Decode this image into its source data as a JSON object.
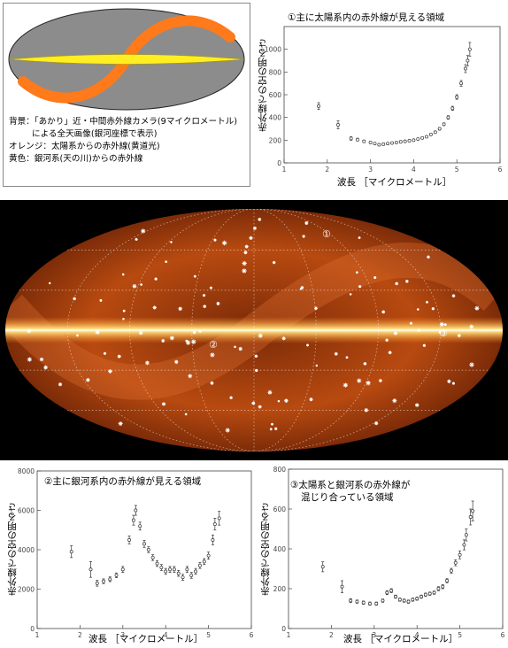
{
  "legend": {
    "line1": "背景：「あかり」近・中間赤外線カメラ(9マイクロメートル)",
    "line2": "による全天画像(銀河座標で表示)",
    "line3": "オレンジ：太陽系からの赤外線(黄道光)",
    "line4": "黄色：銀河系(天の川)からの赤外線",
    "colors": {
      "background": "#8c8c8c",
      "orange": "#ff7a1a",
      "yellow": "#ffee22"
    }
  },
  "map": {
    "label_1": "①",
    "label_2": "②",
    "label_3": "③",
    "colors": {
      "sky": "#000000",
      "glow": "#b84a10",
      "band": "#ffe080"
    }
  },
  "axes_common": {
    "xlabel": "波長 ［マイクロメートル］",
    "ylabel": "赤外線での空の明るさ"
  },
  "chart_data": [
    {
      "type": "scatter",
      "title": "①主に太陽系内の赤外線が見える領域",
      "xlim": [
        1,
        6
      ],
      "ylim": [
        0,
        1200
      ],
      "xticks": [
        "1",
        "2",
        "3",
        "4",
        "5",
        "6"
      ],
      "yticks": [
        "0",
        "200",
        "400",
        "600",
        "800",
        "1000"
      ],
      "points": [
        [
          1.8,
          500,
          30
        ],
        [
          2.25,
          335,
          35
        ],
        [
          2.55,
          215,
          15
        ],
        [
          2.7,
          205,
          12
        ],
        [
          2.85,
          190,
          10
        ],
        [
          3.0,
          180,
          10
        ],
        [
          3.1,
          170,
          8
        ],
        [
          3.2,
          160,
          8
        ],
        [
          3.3,
          165,
          8
        ],
        [
          3.4,
          170,
          8
        ],
        [
          3.5,
          175,
          8
        ],
        [
          3.6,
          180,
          8
        ],
        [
          3.7,
          185,
          8
        ],
        [
          3.8,
          190,
          8
        ],
        [
          3.9,
          195,
          8
        ],
        [
          4.0,
          200,
          8
        ],
        [
          4.1,
          210,
          8
        ],
        [
          4.2,
          220,
          8
        ],
        [
          4.3,
          230,
          8
        ],
        [
          4.4,
          250,
          10
        ],
        [
          4.5,
          270,
          10
        ],
        [
          4.6,
          300,
          10
        ],
        [
          4.7,
          340,
          12
        ],
        [
          4.8,
          400,
          15
        ],
        [
          4.9,
          480,
          18
        ],
        [
          5.0,
          580,
          20
        ],
        [
          5.1,
          700,
          25
        ],
        [
          5.2,
          830,
          35
        ],
        [
          5.25,
          900,
          45
        ],
        [
          5.3,
          1000,
          60
        ]
      ]
    },
    {
      "type": "scatter",
      "title": "②主に銀河系内の赤外線が見える領域",
      "xlim": [
        1,
        6
      ],
      "ylim": [
        0,
        8000
      ],
      "xticks": [
        "1",
        "2",
        "3",
        "4",
        "5",
        "6"
      ],
      "yticks": [
        "0",
        "2000",
        "4000",
        "6000",
        "8000"
      ],
      "points": [
        [
          1.8,
          3900,
          300
        ],
        [
          2.25,
          3000,
          400
        ],
        [
          2.4,
          2300,
          150
        ],
        [
          2.55,
          2400,
          120
        ],
        [
          2.7,
          2500,
          120
        ],
        [
          2.85,
          2700,
          120
        ],
        [
          3.0,
          3000,
          150
        ],
        [
          3.15,
          4500,
          200
        ],
        [
          3.25,
          5500,
          250
        ],
        [
          3.3,
          6000,
          250
        ],
        [
          3.4,
          5200,
          200
        ],
        [
          3.5,
          4300,
          180
        ],
        [
          3.6,
          4000,
          150
        ],
        [
          3.7,
          3600,
          150
        ],
        [
          3.8,
          3300,
          150
        ],
        [
          3.9,
          3100,
          150
        ],
        [
          4.0,
          2900,
          150
        ],
        [
          4.1,
          3000,
          150
        ],
        [
          4.2,
          3000,
          150
        ],
        [
          4.3,
          2800,
          150
        ],
        [
          4.4,
          2600,
          150
        ],
        [
          4.5,
          3000,
          150
        ],
        [
          4.6,
          2700,
          150
        ],
        [
          4.7,
          2900,
          150
        ],
        [
          4.8,
          3200,
          150
        ],
        [
          4.9,
          3400,
          150
        ],
        [
          5.0,
          3700,
          180
        ],
        [
          5.1,
          4500,
          250
        ],
        [
          5.15,
          5300,
          300
        ],
        [
          5.25,
          5600,
          350
        ]
      ]
    },
    {
      "type": "scatter",
      "title": "③太陽系と銀河系の赤外線が",
      "subtitle": "混じり合っている領域",
      "xlim": [
        1,
        6
      ],
      "ylim": [
        0,
        800
      ],
      "xticks": [
        "1",
        "2",
        "3",
        "4",
        "5",
        "6"
      ],
      "yticks": [
        "0",
        "200",
        "400",
        "600",
        "800"
      ],
      "points": [
        [
          1.8,
          310,
          25
        ],
        [
          2.25,
          210,
          30
        ],
        [
          2.45,
          140,
          10
        ],
        [
          2.6,
          135,
          8
        ],
        [
          2.75,
          130,
          8
        ],
        [
          2.9,
          125,
          8
        ],
        [
          3.05,
          125,
          8
        ],
        [
          3.2,
          140,
          8
        ],
        [
          3.3,
          180,
          10
        ],
        [
          3.4,
          190,
          10
        ],
        [
          3.5,
          160,
          8
        ],
        [
          3.6,
          145,
          8
        ],
        [
          3.7,
          140,
          8
        ],
        [
          3.8,
          135,
          8
        ],
        [
          3.9,
          145,
          8
        ],
        [
          4.0,
          150,
          8
        ],
        [
          4.1,
          160,
          8
        ],
        [
          4.2,
          170,
          8
        ],
        [
          4.3,
          175,
          8
        ],
        [
          4.4,
          180,
          8
        ],
        [
          4.5,
          200,
          10
        ],
        [
          4.6,
          210,
          10
        ],
        [
          4.7,
          240,
          10
        ],
        [
          4.8,
          290,
          12
        ],
        [
          4.9,
          330,
          15
        ],
        [
          5.0,
          370,
          20
        ],
        [
          5.1,
          420,
          25
        ],
        [
          5.15,
          470,
          30
        ],
        [
          5.25,
          560,
          40
        ],
        [
          5.3,
          590,
          50
        ]
      ]
    }
  ]
}
